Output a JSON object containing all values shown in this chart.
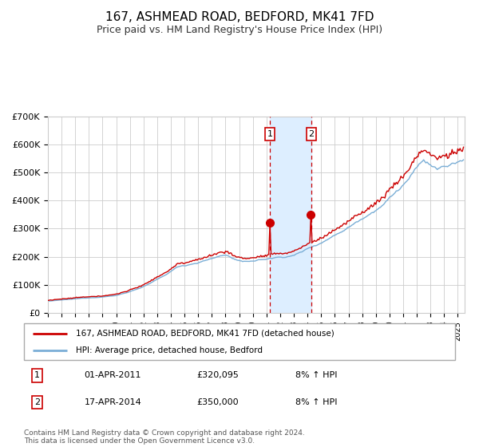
{
  "title": "167, ASHMEAD ROAD, BEDFORD, MK41 7FD",
  "subtitle": "Price paid vs. HM Land Registry's House Price Index (HPI)",
  "ylim": [
    0,
    700000
  ],
  "xlim_start": 1995.0,
  "xlim_end": 2025.5,
  "red_line_label": "167, ASHMEAD ROAD, BEDFORD, MK41 7FD (detached house)",
  "blue_line_label": "HPI: Average price, detached house, Bedford",
  "transaction1_date": 2011.25,
  "transaction1_price": 320095,
  "transaction1_label": "01-APR-2011",
  "transaction1_hpi": "8% ↑ HPI",
  "transaction2_date": 2014.29,
  "transaction2_price": 350000,
  "transaction2_label": "17-APR-2014",
  "transaction2_hpi": "8% ↑ HPI",
  "background_color": "#ffffff",
  "grid_color": "#cccccc",
  "red_color": "#cc0000",
  "blue_color": "#7aaed6",
  "shade_color": "#ddeeff",
  "footnote": "Contains HM Land Registry data © Crown copyright and database right 2024.\nThis data is licensed under the Open Government Licence v3.0.",
  "yticks": [
    0,
    100000,
    200000,
    300000,
    400000,
    500000,
    600000,
    700000
  ],
  "ytick_labels": [
    "£0",
    "£100K",
    "£200K",
    "£300K",
    "£400K",
    "£500K",
    "£600K",
    "£700K"
  ]
}
